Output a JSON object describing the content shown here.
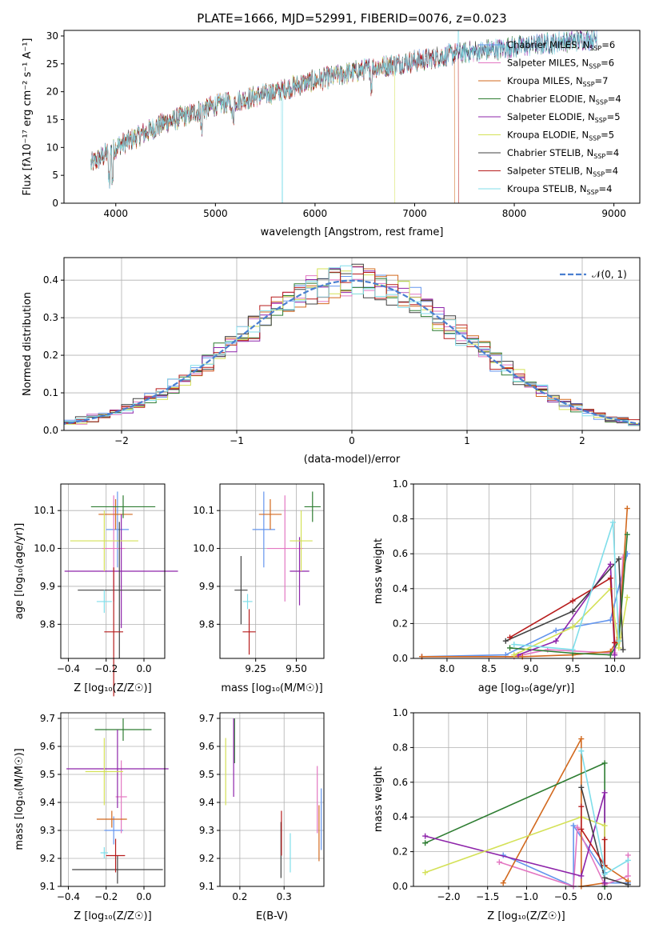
{
  "chart_data": [
    {
      "type": "line",
      "title": "PLATE=1666, MJD=52991, FIBERID=0076, z=0.023",
      "xlabel": "wavelength [Angstrom, rest frame]",
      "ylabel": "Flux [fλ10⁻¹⁷ erg cm⁻² s⁻¹ A⁻¹]",
      "xlim": [
        3480,
        9260
      ],
      "ylim": [
        0,
        31
      ],
      "xticks": [
        "4000",
        "5000",
        "6000",
        "7000",
        "8000",
        "9000"
      ],
      "yticks": [
        "0",
        "5",
        "10",
        "15",
        "20",
        "25",
        "30"
      ],
      "legend_position": "upper-right",
      "series": [
        {
          "name": "Chabrier MILES, N_SSP=6",
          "legend": "Chabrier MILES, N",
          "sub": "SSP",
          "suffix": "=6",
          "color": "#6495ed",
          "drop": null
        },
        {
          "name": "Salpeter MILES, N_SSP=6",
          "legend": "Salpeter MILES, N",
          "sub": "SSP",
          "suffix": "=6",
          "color": "#e377c2",
          "drop": null
        },
        {
          "name": "Kroupa MILES, N_SSP=7",
          "legend": "Kroupa MILES, N",
          "sub": "SSP",
          "suffix": "=7",
          "color": "#d2691e",
          "drop": 7400
        },
        {
          "name": "Chabrier ELODIE, N_SSP=4",
          "legend": "Chabrier ELODIE, N",
          "sub": "SSP",
          "suffix": "=4",
          "color": "#2e7d32",
          "drop": null
        },
        {
          "name": "Salpeter ELODIE, N_SSP=5",
          "legend": "Salpeter ELODIE, N",
          "sub": "SSP",
          "suffix": "=5",
          "color": "#8e24aa",
          "drop": null
        },
        {
          "name": "Kroupa ELODIE, N_SSP=5",
          "legend": "Kroupa ELODIE, N",
          "sub": "SSP",
          "suffix": "=5",
          "color": "#d4e157",
          "drop": 6800
        },
        {
          "name": "Chabrier STELIB, N_SSP=4",
          "legend": "Chabrier STELIB, N",
          "sub": "SSP",
          "suffix": "=4",
          "color": "#424242",
          "drop": null
        },
        {
          "name": "Salpeter STELIB, N_SSP=4",
          "legend": "Salpeter STELIB, N",
          "sub": "SSP",
          "suffix": "=4",
          "color": "#b71c1c",
          "drop": 7440
        },
        {
          "name": "Kroupa STELIB, N_SSP=4",
          "legend": "Kroupa STELIB, N",
          "sub": "SSP",
          "suffix": "=4",
          "color": "#80deea",
          "drop": null
        }
      ],
      "continuum": {
        "x": [
          3750,
          4000,
          4500,
          5000,
          5500,
          6000,
          6500,
          7000,
          7500,
          8000,
          8500,
          8830
        ],
        "y": [
          7,
          10,
          14.5,
          17.5,
          19.5,
          22,
          24,
          25.5,
          27,
          28,
          29,
          29.5
        ]
      }
    },
    {
      "type": "histogram",
      "xlabel": "(data-model)/error",
      "ylabel": "Normed distribution",
      "xlim": [
        -2.5,
        2.5
      ],
      "ylim": [
        0,
        0.46
      ],
      "xticks": [
        "−2",
        "−1",
        "0",
        "1",
        "2"
      ],
      "yticks": [
        "0.0",
        "0.1",
        "0.2",
        "0.3",
        "0.4"
      ],
      "bin_width": 0.1,
      "reference_curve": {
        "label": "𝒩(0, 1)",
        "style": "dashed",
        "color": "#4a7fd0"
      },
      "legend_position": "upper-right"
    },
    {
      "type": "scatter",
      "xlabel": "Z [log₁₀(Z/Z☉)]",
      "ylabel": "age  [log₁₀(age/yr)]",
      "xlim": [
        -0.44,
        0.11
      ],
      "ylim": [
        9.71,
        10.17
      ],
      "xticks": [
        "−0.4",
        "−0.2",
        "0.0"
      ],
      "yticks": [
        "9.8",
        "9.9",
        "10.0",
        "10.1"
      ],
      "points": [
        {
          "x": -0.14,
          "y": 10.05,
          "xerr": 0.06,
          "yerr": 0.1,
          "color": "#6495ed"
        },
        {
          "x": -0.16,
          "y": 10.0,
          "xerr": 0.06,
          "yerr": 0.14,
          "color": "#e377c2"
        },
        {
          "x": -0.15,
          "y": 10.09,
          "xerr": 0.09,
          "yerr": 0.04,
          "color": "#d2691e"
        },
        {
          "x": -0.11,
          "y": 10.11,
          "xerr": 0.17,
          "yerr": 0.03,
          "color": "#2e7d32"
        },
        {
          "x": -0.12,
          "y": 9.94,
          "xerr": 0.3,
          "yerr": 0.15,
          "color": "#8e24aa"
        },
        {
          "x": -0.21,
          "y": 10.02,
          "xerr": 0.18,
          "yerr": 0.08,
          "color": "#d4e157"
        },
        {
          "x": -0.13,
          "y": 9.89,
          "xerr": 0.22,
          "yerr": 0.18,
          "color": "#424242"
        },
        {
          "x": -0.16,
          "y": 9.78,
          "xerr": 0.05,
          "yerr": 0.17,
          "color": "#b71c1c"
        },
        {
          "x": -0.21,
          "y": 9.86,
          "xerr": 0.04,
          "yerr": 0.03,
          "color": "#80deea"
        }
      ]
    },
    {
      "type": "scatter",
      "xlabel": "mass [log₁₀(M/M☉)]",
      "xlim": [
        9.03,
        9.67
      ],
      "ylim": [
        9.71,
        10.17
      ],
      "xticks": [
        "9.25",
        "9.50"
      ],
      "yticks": [
        "9.8",
        "9.9",
        "10.0",
        "10.1"
      ],
      "points": [
        {
          "x": 9.3,
          "y": 10.05,
          "xerr": 0.07,
          "yerr": 0.1,
          "color": "#6495ed"
        },
        {
          "x": 9.43,
          "y": 10.0,
          "xerr": 0.11,
          "yerr": 0.14,
          "color": "#e377c2"
        },
        {
          "x": 9.34,
          "y": 10.09,
          "xerr": 0.07,
          "yerr": 0.04,
          "color": "#d2691e"
        },
        {
          "x": 9.6,
          "y": 10.11,
          "xerr": 0.05,
          "yerr": 0.04,
          "color": "#2e7d32"
        },
        {
          "x": 9.52,
          "y": 9.94,
          "xerr": 0.06,
          "yerr": 0.09,
          "color": "#8e24aa"
        },
        {
          "x": 9.53,
          "y": 10.02,
          "xerr": 0.07,
          "yerr": 0.08,
          "color": "#d4e157"
        },
        {
          "x": 9.16,
          "y": 9.89,
          "xerr": 0.04,
          "yerr": 0.09,
          "color": "#424242"
        },
        {
          "x": 9.21,
          "y": 9.78,
          "xerr": 0.04,
          "yerr": 0.06,
          "color": "#b71c1c"
        },
        {
          "x": 9.2,
          "y": 9.86,
          "xerr": 0.03,
          "yerr": 0.02,
          "color": "#80deea"
        }
      ]
    },
    {
      "type": "line",
      "xlabel": "age  [log₁₀(age/yr)]",
      "ylabel": "mass weight",
      "xlim": [
        7.6,
        10.3
      ],
      "ylim": [
        0,
        1
      ],
      "xticks": [
        "8.0",
        "8.5",
        "9.0",
        "9.5",
        "10.0"
      ],
      "yticks": [
        "0.0",
        "0.2",
        "0.4",
        "0.6",
        "0.8",
        "1.0"
      ],
      "series": [
        {
          "name": "Chabrier MILES",
          "color": "#6495ed",
          "x": [
            7.7,
            8.7,
            9.3,
            9.5,
            9.95,
            10.15
          ],
          "y": [
            0.01,
            0.02,
            0.16,
            0.18,
            0.22,
            0.6
          ]
        },
        {
          "name": "Salpeter MILES",
          "color": "#e377c2",
          "x": [
            7.7,
            8.8,
            9.2,
            10.0,
            10.05,
            10.1
          ],
          "y": [
            0.01,
            0.01,
            0.05,
            0.03,
            0.2,
            0.58
          ]
        },
        {
          "name": "Kroupa MILES",
          "color": "#d2691e",
          "x": [
            7.7,
            8.9,
            9.5,
            9.95,
            10.05,
            10.15
          ],
          "y": [
            0.01,
            0.01,
            0.02,
            0.04,
            0.12,
            0.86
          ]
        },
        {
          "name": "Chabrier ELODIE",
          "color": "#2e7d32",
          "x": [
            8.75,
            9.5,
            9.95,
            10.05,
            10.15
          ],
          "y": [
            0.06,
            0.03,
            0.02,
            0.1,
            0.71
          ]
        },
        {
          "name": "Salpeter ELODIE",
          "color": "#8e24aa",
          "x": [
            8.85,
            9.3,
            9.95,
            10.0
          ],
          "y": [
            0.02,
            0.1,
            0.54,
            0.02
          ]
        },
        {
          "name": "Kroupa ELODIE",
          "color": "#d4e157",
          "x": [
            8.8,
            9.5,
            9.95,
            10.05,
            10.15
          ],
          "y": [
            0.02,
            0.18,
            0.4,
            0.06,
            0.35
          ]
        },
        {
          "name": "Chabrier STELIB",
          "color": "#424242",
          "x": [
            8.7,
            9.5,
            10.05,
            10.1
          ],
          "y": [
            0.1,
            0.27,
            0.57,
            0.05
          ]
        },
        {
          "name": "Salpeter STELIB",
          "color": "#b71c1c",
          "x": [
            8.75,
            9.5,
            9.95,
            10.0
          ],
          "y": [
            0.12,
            0.33,
            0.46,
            0.09
          ]
        },
        {
          "name": "Kroupa STELIB",
          "color": "#80deea",
          "x": [
            8.8,
            9.5,
            9.98,
            10.05
          ],
          "y": [
            0.08,
            0.05,
            0.78,
            0.1
          ]
        }
      ]
    },
    {
      "type": "scatter",
      "xlabel": "Z [log₁₀(Z/Z☉)]",
      "ylabel": "mass [log₁₀(M/M☉)]",
      "xlim": [
        -0.44,
        0.11
      ],
      "ylim": [
        9.1,
        9.72
      ],
      "xticks": [
        "−0.4",
        "−0.2",
        "0.0"
      ],
      "yticks": [
        "9.1",
        "9.2",
        "9.3",
        "9.4",
        "9.5",
        "9.6",
        "9.7"
      ],
      "points": [
        {
          "x": -0.16,
          "y": 9.3,
          "xerr": 0.05,
          "yerr": 0.05,
          "color": "#6495ed"
        },
        {
          "x": -0.12,
          "y": 9.42,
          "xerr": 0.03,
          "yerr": 0.13,
          "color": "#e377c2"
        },
        {
          "x": -0.17,
          "y": 9.34,
          "xerr": 0.08,
          "yerr": 0.03,
          "color": "#d2691e"
        },
        {
          "x": -0.11,
          "y": 9.66,
          "xerr": 0.15,
          "yerr": 0.04,
          "color": "#2e7d32"
        },
        {
          "x": -0.14,
          "y": 9.52,
          "xerr": 0.27,
          "yerr": 0.14,
          "color": "#8e24aa"
        },
        {
          "x": -0.21,
          "y": 9.51,
          "xerr": 0.1,
          "yerr": 0.12,
          "color": "#d4e157"
        },
        {
          "x": -0.14,
          "y": 9.16,
          "xerr": 0.24,
          "yerr": 0.05,
          "color": "#424242"
        },
        {
          "x": -0.15,
          "y": 9.21,
          "xerr": 0.05,
          "yerr": 0.06,
          "color": "#b71c1c"
        },
        {
          "x": -0.21,
          "y": 9.22,
          "xerr": 0.02,
          "yerr": 0.02,
          "color": "#80deea"
        }
      ]
    },
    {
      "type": "scatter",
      "xlabel": "E(B-V)",
      "xlim": [
        0.155,
        0.39
      ],
      "ylim": [
        9.1,
        9.72
      ],
      "xticks": [
        "0.2",
        "0.3"
      ],
      "yticks": [
        "9.1",
        "9.2",
        "9.3",
        "9.4",
        "9.5",
        "9.6",
        "9.7"
      ],
      "points": [
        {
          "x": 0.384,
          "y": 9.34,
          "xerr": 0,
          "yerr": 0.11,
          "color": "#6495ed"
        },
        {
          "x": 0.375,
          "y": 9.41,
          "xerr": 0,
          "yerr": 0.12,
          "color": "#e377c2"
        },
        {
          "x": 0.379,
          "y": 9.29,
          "xerr": 0,
          "yerr": 0.1,
          "color": "#d2691e"
        },
        {
          "x": 0.188,
          "y": 9.62,
          "xerr": 0,
          "yerr": 0.08,
          "color": "#2e7d32"
        },
        {
          "x": 0.186,
          "y": 9.56,
          "xerr": 0,
          "yerr": 0.14,
          "color": "#8e24aa"
        },
        {
          "x": 0.168,
          "y": 9.51,
          "xerr": 0,
          "yerr": 0.12,
          "color": "#d4e157"
        },
        {
          "x": 0.293,
          "y": 9.23,
          "xerr": 0,
          "yerr": 0.1,
          "color": "#424242"
        },
        {
          "x": 0.294,
          "y": 9.29,
          "xerr": 0,
          "yerr": 0.08,
          "color": "#b71c1c"
        },
        {
          "x": 0.314,
          "y": 9.22,
          "xerr": 0,
          "yerr": 0.07,
          "color": "#80deea"
        }
      ]
    },
    {
      "type": "line",
      "xlabel": "Z [log₁₀(Z/Z☉)]",
      "ylabel": "mass weight",
      "xlim": [
        -2.45,
        0.45
      ],
      "ylim": [
        0,
        1
      ],
      "xticks": [
        "−2.0",
        "−1.5",
        "−1.0",
        "−0.5",
        "0.0"
      ],
      "yticks": [
        "0.0",
        "0.2",
        "0.4",
        "0.6",
        "0.8",
        "1.0"
      ],
      "series": [
        {
          "name": "Chabrier MILES",
          "color": "#6495ed",
          "x": [
            -1.3,
            -0.4,
            -0.4,
            0.0,
            0.0,
            0.3
          ],
          "y": [
            0.18,
            0.0,
            0.35,
            0.08,
            0.02,
            0.02
          ]
        },
        {
          "name": "Salpeter MILES",
          "color": "#e377c2",
          "x": [
            -1.35,
            -0.4,
            -0.35,
            0.0,
            0.3,
            0.3
          ],
          "y": [
            0.14,
            0.0,
            0.34,
            0.01,
            0.06,
            0.18
          ]
        },
        {
          "name": "Kroupa MILES",
          "color": "#d2691e",
          "x": [
            -1.3,
            -0.3,
            -0.3,
            0.0,
            0.0,
            0.3
          ],
          "y": [
            0.02,
            0.85,
            0.0,
            0.02,
            0.12,
            0.03
          ]
        },
        {
          "name": "Chabrier ELODIE",
          "color": "#2e7d32",
          "x": [
            -2.3,
            0.0,
            0.0
          ],
          "y": [
            0.25,
            0.71,
            0.0
          ]
        },
        {
          "name": "Salpeter ELODIE",
          "color": "#8e24aa",
          "x": [
            -2.3,
            -0.3,
            0.0,
            0.0
          ],
          "y": [
            0.29,
            0.06,
            0.54,
            0.02
          ]
        },
        {
          "name": "Kroupa ELODIE",
          "color": "#d4e157",
          "x": [
            -2.3,
            -0.3,
            0.0,
            0.0
          ],
          "y": [
            0.08,
            0.4,
            0.35,
            0.12
          ]
        },
        {
          "name": "Chabrier STELIB",
          "color": "#424242",
          "x": [
            -0.3,
            0.0,
            0.3
          ],
          "y": [
            0.57,
            0.05,
            0.01
          ]
        },
        {
          "name": "Salpeter STELIB",
          "color": "#b71c1c",
          "x": [
            -0.3,
            -0.3,
            0.0,
            0.0
          ],
          "y": [
            0.46,
            0.33,
            0.12,
            0.27
          ]
        },
        {
          "name": "Kroupa STELIB",
          "color": "#80deea",
          "x": [
            -0.3,
            0.0,
            0.0,
            0.3
          ],
          "y": [
            0.78,
            0.1,
            0.07,
            0.15
          ]
        }
      ]
    }
  ]
}
